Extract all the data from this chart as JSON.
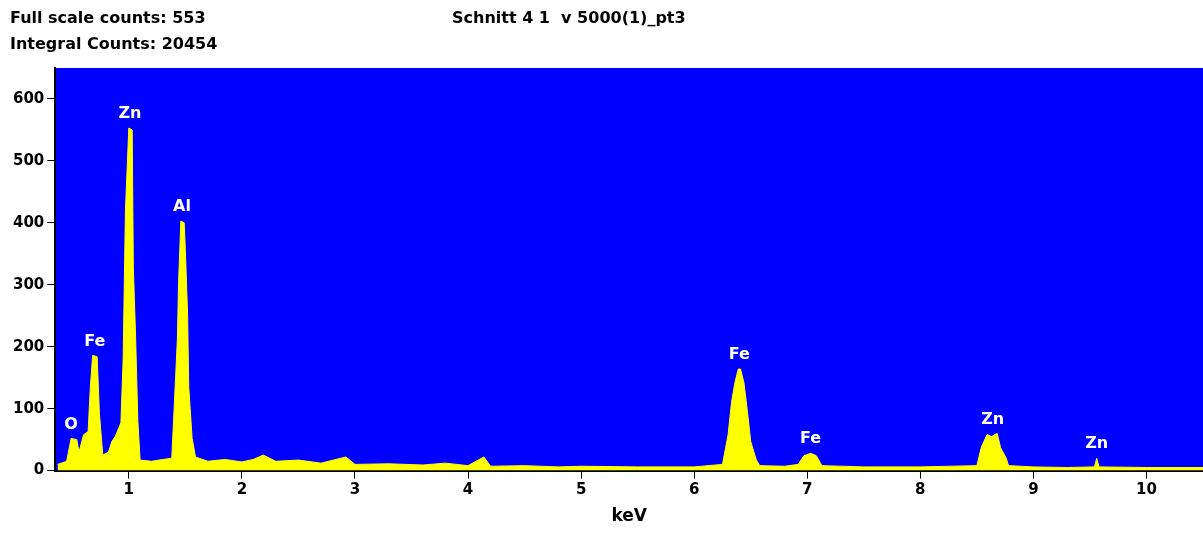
{
  "chart_data": {
    "type": "area",
    "title": "Schnitt 4 1  v 5000(1)_pt3",
    "xlabel": "keV",
    "annotations": [
      "Full scale counts: 553",
      "Integral Counts: 20454",
      {
        "text": "O",
        "x": 0.49,
        "y": 52
      },
      {
        "text": "Fe",
        "x": 0.7,
        "y": 186
      },
      {
        "text": "Zn",
        "x": 1.01,
        "y": 553
      },
      {
        "text": "Al",
        "x": 1.47,
        "y": 403
      },
      {
        "text": "Fe",
        "x": 6.4,
        "y": 164
      },
      {
        "text": "Fe",
        "x": 7.03,
        "y": 28
      },
      {
        "text": "Zn",
        "x": 8.64,
        "y": 60
      },
      {
        "text": "Zn",
        "x": 9.56,
        "y": 20
      }
    ],
    "xlim": [
      0.35,
      10.5
    ],
    "xticks": [
      1,
      2,
      3,
      4,
      5,
      6,
      7,
      8,
      9,
      10
    ],
    "ylim": [
      0,
      650
    ],
    "yticks": [
      0,
      100,
      200,
      300,
      400,
      500,
      600
    ],
    "series": [
      {
        "color": "#ffff00",
        "x": [
          0.37,
          0.45,
          0.49,
          0.54,
          0.56,
          0.6,
          0.64,
          0.66,
          0.68,
          0.72,
          0.74,
          0.77,
          0.82,
          0.85,
          0.88,
          0.93,
          0.95,
          0.97,
          1.0,
          1.03,
          1.04,
          1.06,
          1.08,
          1.1,
          1.2,
          1.3,
          1.38,
          1.4,
          1.43,
          1.44,
          1.46,
          1.49,
          1.5,
          1.52,
          1.53,
          1.56,
          1.59,
          1.7,
          1.85,
          2.0,
          2.1,
          2.19,
          2.3,
          2.5,
          2.7,
          2.92,
          3.0,
          3.3,
          3.6,
          3.8,
          4.0,
          4.14,
          4.2,
          4.5,
          4.8,
          5.0,
          5.5,
          6.0,
          6.25,
          6.3,
          6.33,
          6.36,
          6.39,
          6.41,
          6.44,
          6.47,
          6.5,
          6.55,
          6.58,
          6.8,
          6.92,
          6.97,
          7.03,
          7.08,
          7.13,
          7.5,
          8.0,
          8.5,
          8.54,
          8.59,
          8.63,
          8.68,
          8.71,
          8.76,
          8.78,
          9.0,
          9.3,
          9.54,
          9.56,
          9.58,
          10.0,
          10.5
        ],
        "values": [
          10,
          15,
          52,
          50,
          30,
          58,
          63,
          135,
          186,
          184,
          92,
          25,
          30,
          47,
          55,
          77,
          180,
          420,
          553,
          550,
          328,
          217,
          80,
          17,
          15,
          18,
          20,
          97,
          214,
          303,
          403,
          400,
          356,
          252,
          135,
          52,
          22,
          15,
          18,
          14,
          18,
          25,
          15,
          17,
          12,
          22,
          10,
          11,
          9,
          12,
          8,
          22,
          7,
          8,
          6,
          7,
          6,
          6,
          10,
          58,
          110,
          142,
          164,
          164,
          142,
          97,
          47,
          17,
          8,
          7,
          10,
          24,
          28,
          24,
          8,
          6,
          6,
          8,
          38,
          58,
          55,
          60,
          37,
          20,
          8,
          6,
          5,
          6,
          20,
          6,
          5,
          5
        ]
      }
    ]
  }
}
